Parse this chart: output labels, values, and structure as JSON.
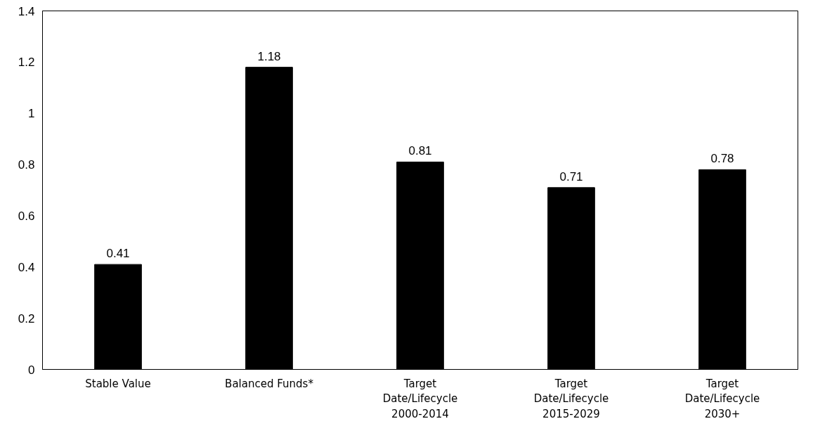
{
  "chart_data": {
    "type": "bar",
    "categories": [
      "Stable Value",
      "Balanced Funds*",
      "Target Date/Lifecycle 2000-2014",
      "Target Date/Lifecycle 2015-2029",
      "Target Date/Lifecycle 2030+"
    ],
    "values": [
      0.41,
      1.18,
      0.81,
      0.71,
      0.78
    ],
    "color": "#000000",
    "ylim": [
      0,
      1.4
    ],
    "yticks": [
      0,
      0.2,
      0.4,
      0.6,
      0.8,
      1,
      1.2,
      1.4
    ],
    "grid": false,
    "data_labels": true
  }
}
